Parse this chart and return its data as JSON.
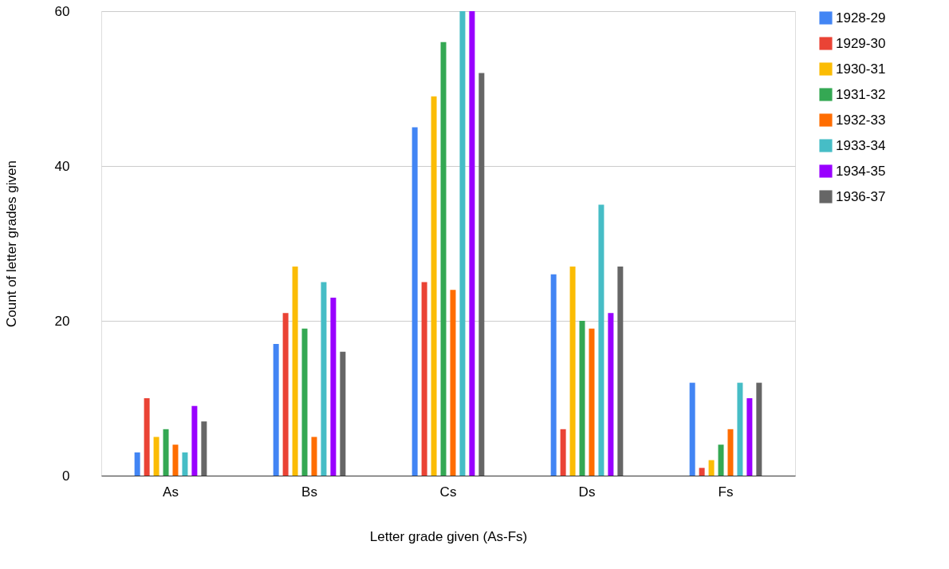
{
  "chart_data": {
    "type": "bar",
    "xlabel": "Letter grade given (As-Fs)",
    "ylabel": "Count of letter grades given",
    "categories": [
      "As",
      "Bs",
      "Cs",
      "Ds",
      "Fs"
    ],
    "series": [
      {
        "name": "1928-29",
        "color": "#4285f4",
        "values": [
          3,
          17,
          45,
          26,
          12
        ]
      },
      {
        "name": "1929-30",
        "color": "#ea4335",
        "values": [
          10,
          21,
          25,
          6,
          1
        ]
      },
      {
        "name": "1930-31",
        "color": "#fbbc04",
        "values": [
          5,
          27,
          49,
          27,
          2
        ]
      },
      {
        "name": "1931-32",
        "color": "#34a853",
        "values": [
          6,
          19,
          56,
          20,
          4
        ]
      },
      {
        "name": "1932-33",
        "color": "#ff6d01",
        "values": [
          4,
          5,
          24,
          19,
          6
        ]
      },
      {
        "name": "1933-34",
        "color": "#46bdc6",
        "values": [
          3,
          25,
          60,
          35,
          12
        ]
      },
      {
        "name": "1934-35",
        "color": "#9900ff",
        "values": [
          9,
          23,
          60,
          21,
          10
        ]
      },
      {
        "name": "1936-37",
        "color": "#666666",
        "values": [
          7,
          16,
          52,
          27,
          12
        ]
      }
    ],
    "ylim": [
      0,
      60
    ],
    "yticks": [
      0,
      20,
      40,
      60
    ],
    "grid": "y",
    "legend": "right"
  }
}
